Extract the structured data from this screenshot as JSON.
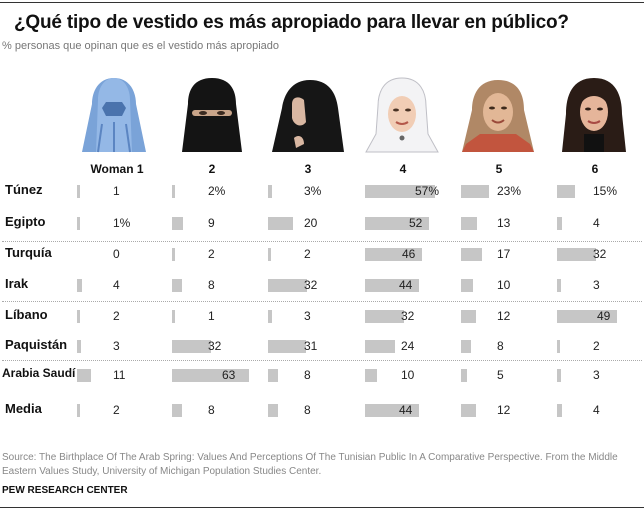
{
  "title": "¿Qué tipo de vestido es más apropiado para llevar en público?",
  "subtitle": "% personas que opinan que es el vestido más apropiado",
  "columns": [
    {
      "label": "Woman 1",
      "image": "burqa-portrait"
    },
    {
      "label": "2",
      "image": "niqab-portrait"
    },
    {
      "label": "3",
      "image": "chador-portrait"
    },
    {
      "label": "4",
      "image": "white-hijab-portrait"
    },
    {
      "label": "5",
      "image": "loose-headscarf-portrait"
    },
    {
      "label": "6",
      "image": "uncovered-hair-portrait"
    }
  ],
  "rows": [
    {
      "country": "Túnez",
      "display": [
        "1",
        "2%",
        "3%",
        "57%",
        "23%",
        "15%"
      ]
    },
    {
      "country": "Egipto",
      "display": [
        "1%",
        "9",
        "20",
        "52",
        "13",
        "4"
      ]
    },
    {
      "country": "Turquía",
      "display": [
        "0",
        "2",
        "2",
        "46",
        "17",
        "32"
      ]
    },
    {
      "country": "Irak",
      "display": [
        "4",
        "8",
        "32",
        "44",
        "10",
        "3"
      ]
    },
    {
      "country": "Líbano",
      "display": [
        "2",
        "1",
        "3",
        "32",
        "12",
        "49"
      ]
    },
    {
      "country": "Paquistán",
      "display": [
        "3",
        "32",
        "31",
        "24",
        "8",
        "2"
      ]
    },
    {
      "country": "Arabia Saudí",
      "display": [
        "11",
        "63",
        "8",
        "10",
        "5",
        "3"
      ]
    },
    {
      "country": "Media",
      "display": [
        "2",
        "8",
        "8",
        "44",
        "12",
        "4"
      ]
    }
  ],
  "source": "Source: The Birthplace Of The Arab Spring: Values And Perceptions Of The Tunisian Public In A Comparative Perspective. From the Middle Eastern Values Study, University of Michigan Population Studies Center.",
  "brand": "PEW RESEARCH CENTER",
  "colors": {
    "bar": "#c6c6c6",
    "title": "#111111",
    "subtitle": "#777777",
    "source": "#888888"
  },
  "chart_data": {
    "type": "bar",
    "title": "¿Qué tipo de vestido es más apropiado para llevar en público?",
    "subtitle": "% personas que opinan que es el vestido más apropiado",
    "xlabel": "",
    "ylabel": "%",
    "categories": [
      "Woman 1",
      "2",
      "3",
      "4",
      "5",
      "6"
    ],
    "series": [
      {
        "name": "Túnez",
        "values": [
          1,
          2,
          3,
          57,
          23,
          15
        ]
      },
      {
        "name": "Egipto",
        "values": [
          1,
          9,
          20,
          52,
          13,
          4
        ]
      },
      {
        "name": "Turquía",
        "values": [
          0,
          2,
          2,
          46,
          17,
          32
        ]
      },
      {
        "name": "Irak",
        "values": [
          4,
          8,
          32,
          44,
          10,
          3
        ]
      },
      {
        "name": "Líbano",
        "values": [
          2,
          1,
          3,
          32,
          12,
          49
        ]
      },
      {
        "name": "Paquistán",
        "values": [
          3,
          32,
          31,
          24,
          8,
          2
        ]
      },
      {
        "name": "Arabia Saudí",
        "values": [
          11,
          63,
          8,
          10,
          5,
          3
        ]
      },
      {
        "name": "Media",
        "values": [
          2,
          8,
          8,
          44,
          12,
          4
        ]
      }
    ],
    "ylim": [
      0,
      100
    ],
    "grid": false,
    "legend": "row labels on left",
    "note": "Horizontal mini bar table; dotted separators between country groups"
  }
}
